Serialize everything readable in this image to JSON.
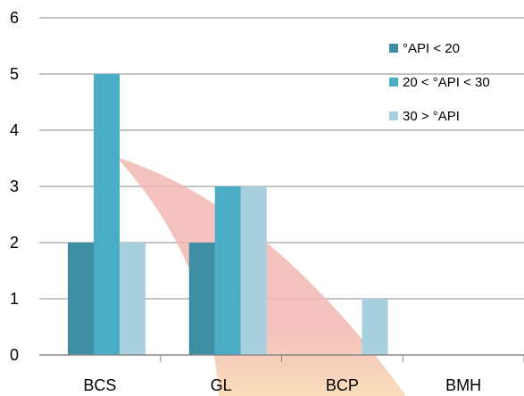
{
  "chart_data": {
    "type": "bar",
    "title": "",
    "xlabel": "",
    "ylabel": "",
    "categories": [
      "BCS",
      "GL",
      "BCP",
      "BMH"
    ],
    "ylim": [
      0,
      6
    ],
    "yticks": [
      0,
      1,
      2,
      3,
      4,
      5,
      6
    ],
    "grid": true,
    "legend_position": "top-right",
    "series": [
      {
        "name": "°API < 20",
        "color": "#3E8DA3",
        "values": [
          2,
          2,
          0,
          0
        ]
      },
      {
        "name": "20 < °API < 30",
        "color": "#4BACC6",
        "values": [
          5,
          3,
          0,
          0
        ]
      },
      {
        "name": "30 > °API",
        "color": "#A9D0DE",
        "values": [
          2,
          3,
          1,
          0
        ]
      }
    ],
    "background_shape": {
      "description": "decorative curved band",
      "colors": [
        "#F2B8B3",
        "#F9D7B5"
      ]
    }
  }
}
